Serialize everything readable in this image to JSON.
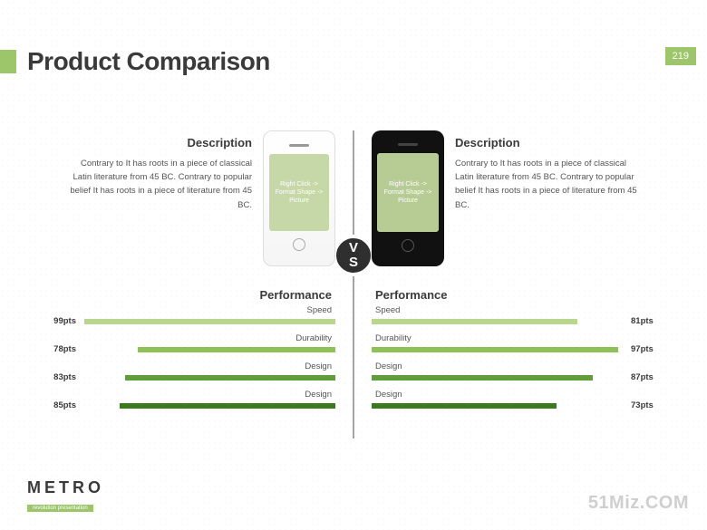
{
  "page": {
    "title": "Product Comparison",
    "number": "219",
    "vs": {
      "top": "V",
      "bottom": "S"
    },
    "accent_color": "#9dc66b",
    "divider_color": "#4a4a4a"
  },
  "phone_placeholder": "Right Click -> Format Shape -> Picture",
  "left": {
    "desc_heading": "Description",
    "desc_body": "Contrary to It has roots in a piece of classical Latin literature from 45 BC. Contrary to popular belief It has roots in a piece of literature from 45 BC.",
    "phone_style": "white",
    "perf_heading": "Performance",
    "bar_track_width": 280,
    "metrics": [
      {
        "label": "Speed",
        "pts": "99pts",
        "value": 99,
        "color": "#b9d68e"
      },
      {
        "label": "Durability",
        "pts": "78pts",
        "value": 78,
        "color": "#8fc159"
      },
      {
        "label": "Design",
        "pts": "83pts",
        "value": 83,
        "color": "#5f9e3a"
      },
      {
        "label": "Design",
        "pts": "85pts",
        "value": 85,
        "color": "#3b7a1f"
      }
    ]
  },
  "right": {
    "desc_heading": "Description",
    "desc_body": "Contrary to It has roots in a piece of classical Latin literature from 45 BC. Contrary to popular belief It has roots in a piece of literature from 45 BC.",
    "phone_style": "black",
    "perf_heading": "Performance",
    "bar_track_width": 280,
    "metrics": [
      {
        "label": "Speed",
        "pts": "81pts",
        "value": 81,
        "color": "#b9d68e"
      },
      {
        "label": "Durability",
        "pts": "97pts",
        "value": 97,
        "color": "#8fc159"
      },
      {
        "label": "Design",
        "pts": "87pts",
        "value": 87,
        "color": "#5f9e3a"
      },
      {
        "label": "Design",
        "pts": "73pts",
        "value": 73,
        "color": "#3b7a1f"
      }
    ]
  },
  "footer": {
    "logo_text": "METRO",
    "logo_sub": "revolution presentation",
    "watermark": "51Miz.COM"
  }
}
